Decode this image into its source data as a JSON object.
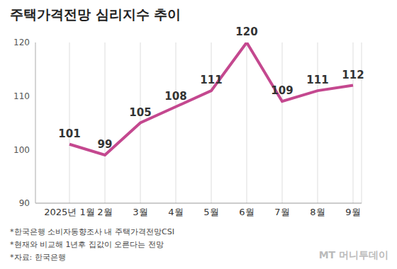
{
  "chart_data": {
    "type": "line",
    "title": "주택가격전망 심리지수 추이",
    "categories": [
      "2025년 1월",
      "2월",
      "3월",
      "4월",
      "5월",
      "6월",
      "7월",
      "8월",
      "9월"
    ],
    "values": [
      101,
      99,
      105,
      108,
      111,
      120,
      109,
      111,
      112
    ],
    "color": "#c4488f",
    "ylim": [
      90,
      120
    ],
    "yticks": [
      90,
      100,
      110,
      120
    ],
    "grid": true,
    "data_labels": true,
    "notes": [
      "*한국은행 소비자동향조사 내 주택가격전망CSI",
      "*현재와 비교해 1년후 집값이 오른다는 전망",
      "*자료: 한국은행"
    ],
    "watermark": "MT 머니투데이"
  }
}
